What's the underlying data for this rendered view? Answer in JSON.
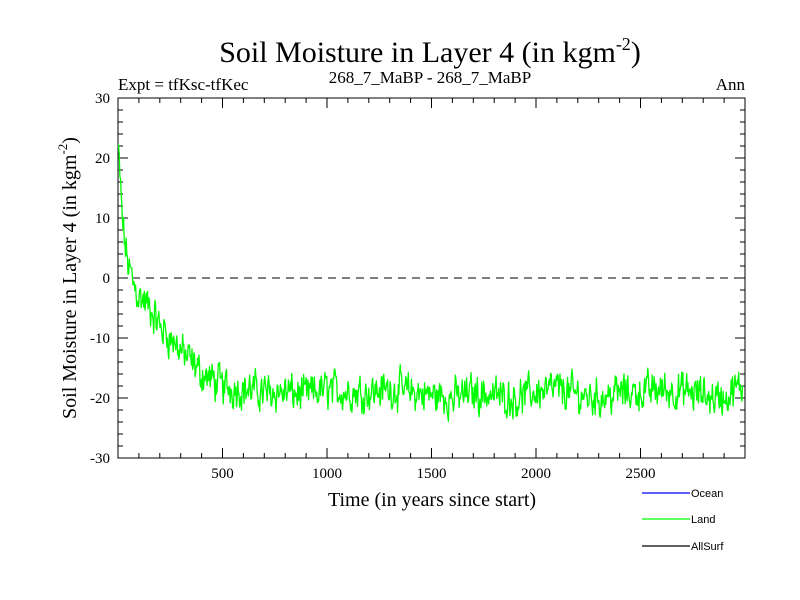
{
  "chart_data": {
    "type": "line",
    "title": "Soil Moisture in Layer 4 (in kgm",
    "title_superscript": "-2",
    "title_close": ")",
    "subtitle_left": "Expt = tfKsc-tfKec",
    "subtitle_center": "268_7_MaBP - 268_7_MaBP",
    "subtitle_right": "Ann",
    "xlabel": "Time (in years since start)",
    "ylabel": "Soil Moisture in Layer 4 (in kgm",
    "ylabel_superscript": "-2",
    "ylabel_close": ")",
    "xlim": [
      0,
      3000
    ],
    "ylim": [
      -30,
      30
    ],
    "xticks": [
      500,
      1000,
      1500,
      2000,
      2500
    ],
    "yticks": [
      -30,
      -20,
      -10,
      0,
      10,
      20,
      30
    ],
    "reference_line": 0,
    "legend": [
      {
        "name": "Ocean",
        "color": "#0000ff"
      },
      {
        "name": "Land",
        "color": "#00ff00"
      },
      {
        "name": "AllSurf",
        "color": "#000000"
      }
    ],
    "series": [
      {
        "name": "Land",
        "color": "#00ff00",
        "x": [
          0,
          10,
          20,
          35,
          50,
          75,
          100,
          150,
          200,
          250,
          300,
          350,
          400,
          500,
          600,
          700,
          800,
          900,
          1000,
          1100,
          1200,
          1300,
          1400,
          1500,
          1600,
          1700,
          1800,
          1900,
          2000,
          2100,
          2200,
          2300,
          2400,
          2500,
          2600,
          2700,
          2800,
          2900,
          2990
        ],
        "values": [
          22,
          16,
          10,
          5,
          2,
          -1,
          -3,
          -5,
          -8,
          -10,
          -12,
          -14,
          -16,
          -18,
          -18.5,
          -19,
          -19,
          -19.5,
          -18.5,
          -19,
          -19,
          -18.5,
          -19,
          -19.5,
          -20,
          -19,
          -19.5,
          -20,
          -19,
          -18.5,
          -19.5,
          -20,
          -19,
          -19,
          -18.5,
          -19,
          -19.5,
          -20,
          -18
        ]
      },
      {
        "name": "Ocean",
        "color": "#0000ff",
        "x": [],
        "values": []
      },
      {
        "name": "AllSurf",
        "color": "#000000",
        "x": [],
        "values": []
      }
    ]
  }
}
